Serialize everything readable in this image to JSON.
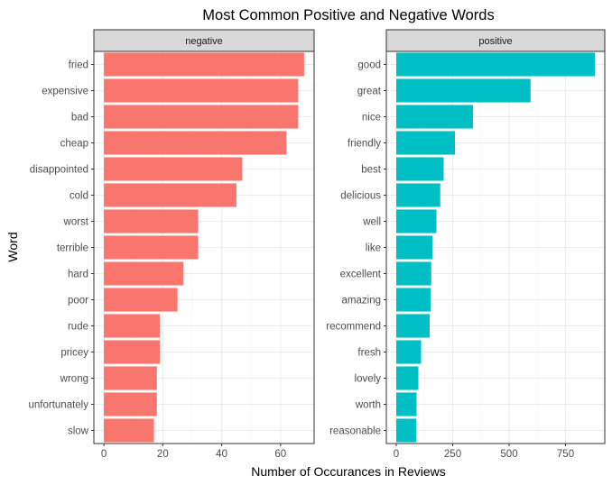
{
  "chart_data": {
    "type": "bar",
    "orientation": "horizontal",
    "title": "Most Common Positive and Negative Words",
    "xlabel": "Number of Occurances in Reviews",
    "ylabel": "Word",
    "grid": true,
    "legend": "none",
    "panels": [
      {
        "name": "negative",
        "color": "#F8766D",
        "xlim": [
          -3.4,
          71.4
        ],
        "xticks": [
          0,
          20,
          40,
          60
        ],
        "categories": [
          "fried",
          "expensive",
          "bad",
          "cheap",
          "disappointed",
          "cold",
          "worst",
          "terrible",
          "hard",
          "poor",
          "rude",
          "pricey",
          "wrong",
          "unfortunately",
          "slow"
        ],
        "values": [
          68,
          66,
          66,
          62,
          47,
          45,
          32,
          32,
          27,
          25,
          19,
          19,
          18,
          18,
          17
        ]
      },
      {
        "name": "positive",
        "color": "#00BFC4",
        "xlim": [
          -44,
          924
        ],
        "xticks": [
          0,
          250,
          500,
          750
        ],
        "categories": [
          "good",
          "great",
          "nice",
          "friendly",
          "best",
          "delicious",
          "well",
          "like",
          "excellent",
          "amazing",
          "recommend",
          "fresh",
          "lovely",
          "worth",
          "reasonable"
        ],
        "values": [
          880,
          595,
          340,
          260,
          210,
          195,
          178,
          160,
          155,
          152,
          148,
          110,
          98,
          90,
          88
        ]
      }
    ]
  }
}
